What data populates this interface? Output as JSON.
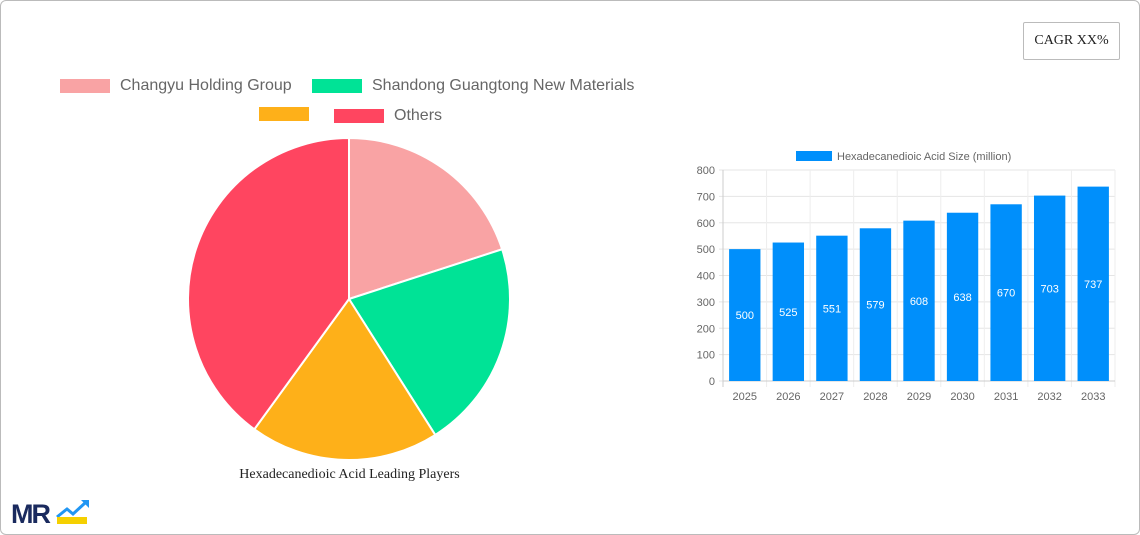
{
  "cagr_button": "CAGR XX%",
  "chart_data": [
    {
      "type": "pie",
      "title": "Hexadecanedioic Acid Leading Players",
      "legend_position": "top",
      "slices": [
        {
          "name": "Changyu Holding Group",
          "value": 20,
          "color": "#f9a3a4"
        },
        {
          "name": "Shandong Guangtong New Materials",
          "value": 21,
          "color": "#00e396"
        },
        {
          "name": "",
          "value": 19,
          "color": "#feb019"
        },
        {
          "name": "Others",
          "value": 40,
          "color": "#ff4560"
        }
      ]
    },
    {
      "type": "bar",
      "legend_position": "top",
      "grid": true,
      "categories": [
        "2025",
        "2026",
        "2027",
        "2028",
        "2029",
        "2030",
        "2031",
        "2032",
        "2033"
      ],
      "series": [
        {
          "name": "Hexadecanedioic Acid Size (million)",
          "values": [
            500,
            525,
            551,
            579,
            608,
            638,
            670,
            703,
            737
          ],
          "color": "#008ffb"
        }
      ],
      "ylim": [
        0,
        800
      ],
      "yticks": [
        "0",
        "100",
        "200",
        "300",
        "400",
        "500",
        "600",
        "700",
        "800"
      ]
    }
  ]
}
